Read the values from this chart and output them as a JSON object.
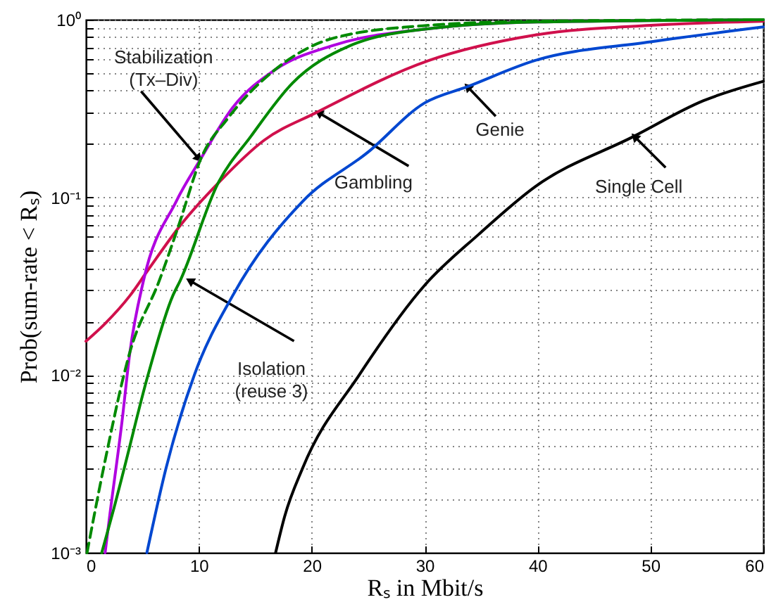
{
  "chart_data": {
    "type": "line",
    "xlabel": "Rₛ in Mbit/s",
    "ylabel": "Prob(sum-rate < Rₛ)",
    "log": "y",
    "grid": true,
    "marker": "none",
    "line_style": "solid",
    "xlim": [
      0,
      60
    ],
    "xticks": [
      0,
      10,
      20,
      30,
      40,
      50,
      60
    ],
    "ylim": [
      0.001,
      1
    ],
    "yticks": [
      {
        "value": 0.001,
        "label": "10⁻³"
      },
      {
        "value": 0.002,
        "label": null
      },
      {
        "value": 0.003,
        "label": null
      },
      {
        "value": 0.004,
        "label": null
      },
      {
        "value": 0.005,
        "label": null
      },
      {
        "value": 0.006,
        "label": null
      },
      {
        "value": 0.007,
        "label": null
      },
      {
        "value": 0.008,
        "label": null
      },
      {
        "value": 0.009,
        "label": null
      },
      {
        "value": 0.01,
        "label": "10⁻²"
      },
      {
        "value": 0.02,
        "label": null
      },
      {
        "value": 0.03,
        "label": null
      },
      {
        "value": 0.04,
        "label": null
      },
      {
        "value": 0.05,
        "label": null
      },
      {
        "value": 0.06,
        "label": null
      },
      {
        "value": 0.07,
        "label": null
      },
      {
        "value": 0.08,
        "label": null
      },
      {
        "value": 0.09,
        "label": null
      },
      {
        "value": 0.1,
        "label": "10⁻¹"
      },
      {
        "value": 0.2,
        "label": null
      },
      {
        "value": 0.3,
        "label": null
      },
      {
        "value": 0.4,
        "label": null
      },
      {
        "value": 0.5,
        "label": null
      },
      {
        "value": 0.6,
        "label": null
      },
      {
        "value": 0.7,
        "label": null
      },
      {
        "value": 0.8,
        "label": null
      },
      {
        "value": 0.9,
        "label": null
      },
      {
        "value": 1,
        "label": "10⁰"
      }
    ],
    "series": [
      {
        "color": "#000000",
        "x": [
          16.8,
          17.6,
          19.2,
          24.2,
          30,
          34.8,
          39.8,
          48.5,
          54.7,
          60
        ],
        "values": [
          0.001,
          0.0016,
          0.003,
          0.01,
          0.032,
          0.062,
          0.115,
          0.22,
          0.35,
          0.45
        ]
      },
      {
        "color": "#0047d0",
        "x": [
          5.4,
          7.1,
          9.6,
          13,
          19.2,
          25,
          30,
          33.8,
          39.8,
          50,
          60
        ],
        "values": [
          0.001,
          0.003,
          0.01,
          0.028,
          0.095,
          0.18,
          0.34,
          0.42,
          0.59,
          0.75,
          0.91
        ]
      },
      {
        "color": "#d0104c",
        "x": [
          0,
          1.7,
          3.9,
          5.5,
          8.4,
          11.7,
          15.8,
          20.4,
          30.4,
          39.8,
          50,
          60
        ],
        "values": [
          0.0155,
          0.0195,
          0.028,
          0.039,
          0.07,
          0.12,
          0.21,
          0.3,
          0.59,
          0.82,
          0.93,
          0.98
        ]
      },
      {
        "color": "#b000e0",
        "x": [
          1.7,
          2.1,
          3.2,
          3.9,
          5.1,
          8,
          10.2,
          13,
          16.7,
          22,
          30.4,
          40,
          60
        ],
        "values": [
          0.001,
          0.0016,
          0.0055,
          0.0135,
          0.034,
          0.095,
          0.166,
          0.32,
          0.52,
          0.72,
          0.89,
          0.97,
          1
        ]
      },
      {
        "color": "#008a00",
        "line_style": "dashed",
        "x": [
          0.1,
          1.7,
          3.9,
          6.5,
          8.2,
          10.2,
          12.6,
          16.7,
          22,
          30.4,
          40,
          60
        ],
        "values": [
          0.001,
          0.0033,
          0.0135,
          0.034,
          0.069,
          0.166,
          0.28,
          0.52,
          0.79,
          0.93,
          0.98,
          1
        ]
      },
      {
        "color": "#008a00",
        "x": [
          1.4,
          2.6,
          3.4,
          5.5,
          7.7,
          8.35,
          11.7,
          14.6,
          18.3,
          23.3,
          30.4,
          40,
          60
        ],
        "values": [
          0.001,
          0.0019,
          0.003,
          0.01,
          0.028,
          0.034,
          0.12,
          0.22,
          0.44,
          0.71,
          0.89,
          0.97,
          1
        ]
      }
    ],
    "annotations": [
      {
        "text": "Stabilization\n(Tx–Div)",
        "x": 10,
        "y": 0.165
      },
      {
        "text": "Gambling",
        "x": 20.6,
        "y": 0.3
      },
      {
        "text": "Genie",
        "x": 33.8,
        "y": 0.42
      },
      {
        "text": "Single Cell",
        "x": 48.6,
        "y": 0.22
      },
      {
        "text": "Isolation\n(reuse 3)",
        "x": 9.2,
        "y": 0.034
      }
    ]
  }
}
